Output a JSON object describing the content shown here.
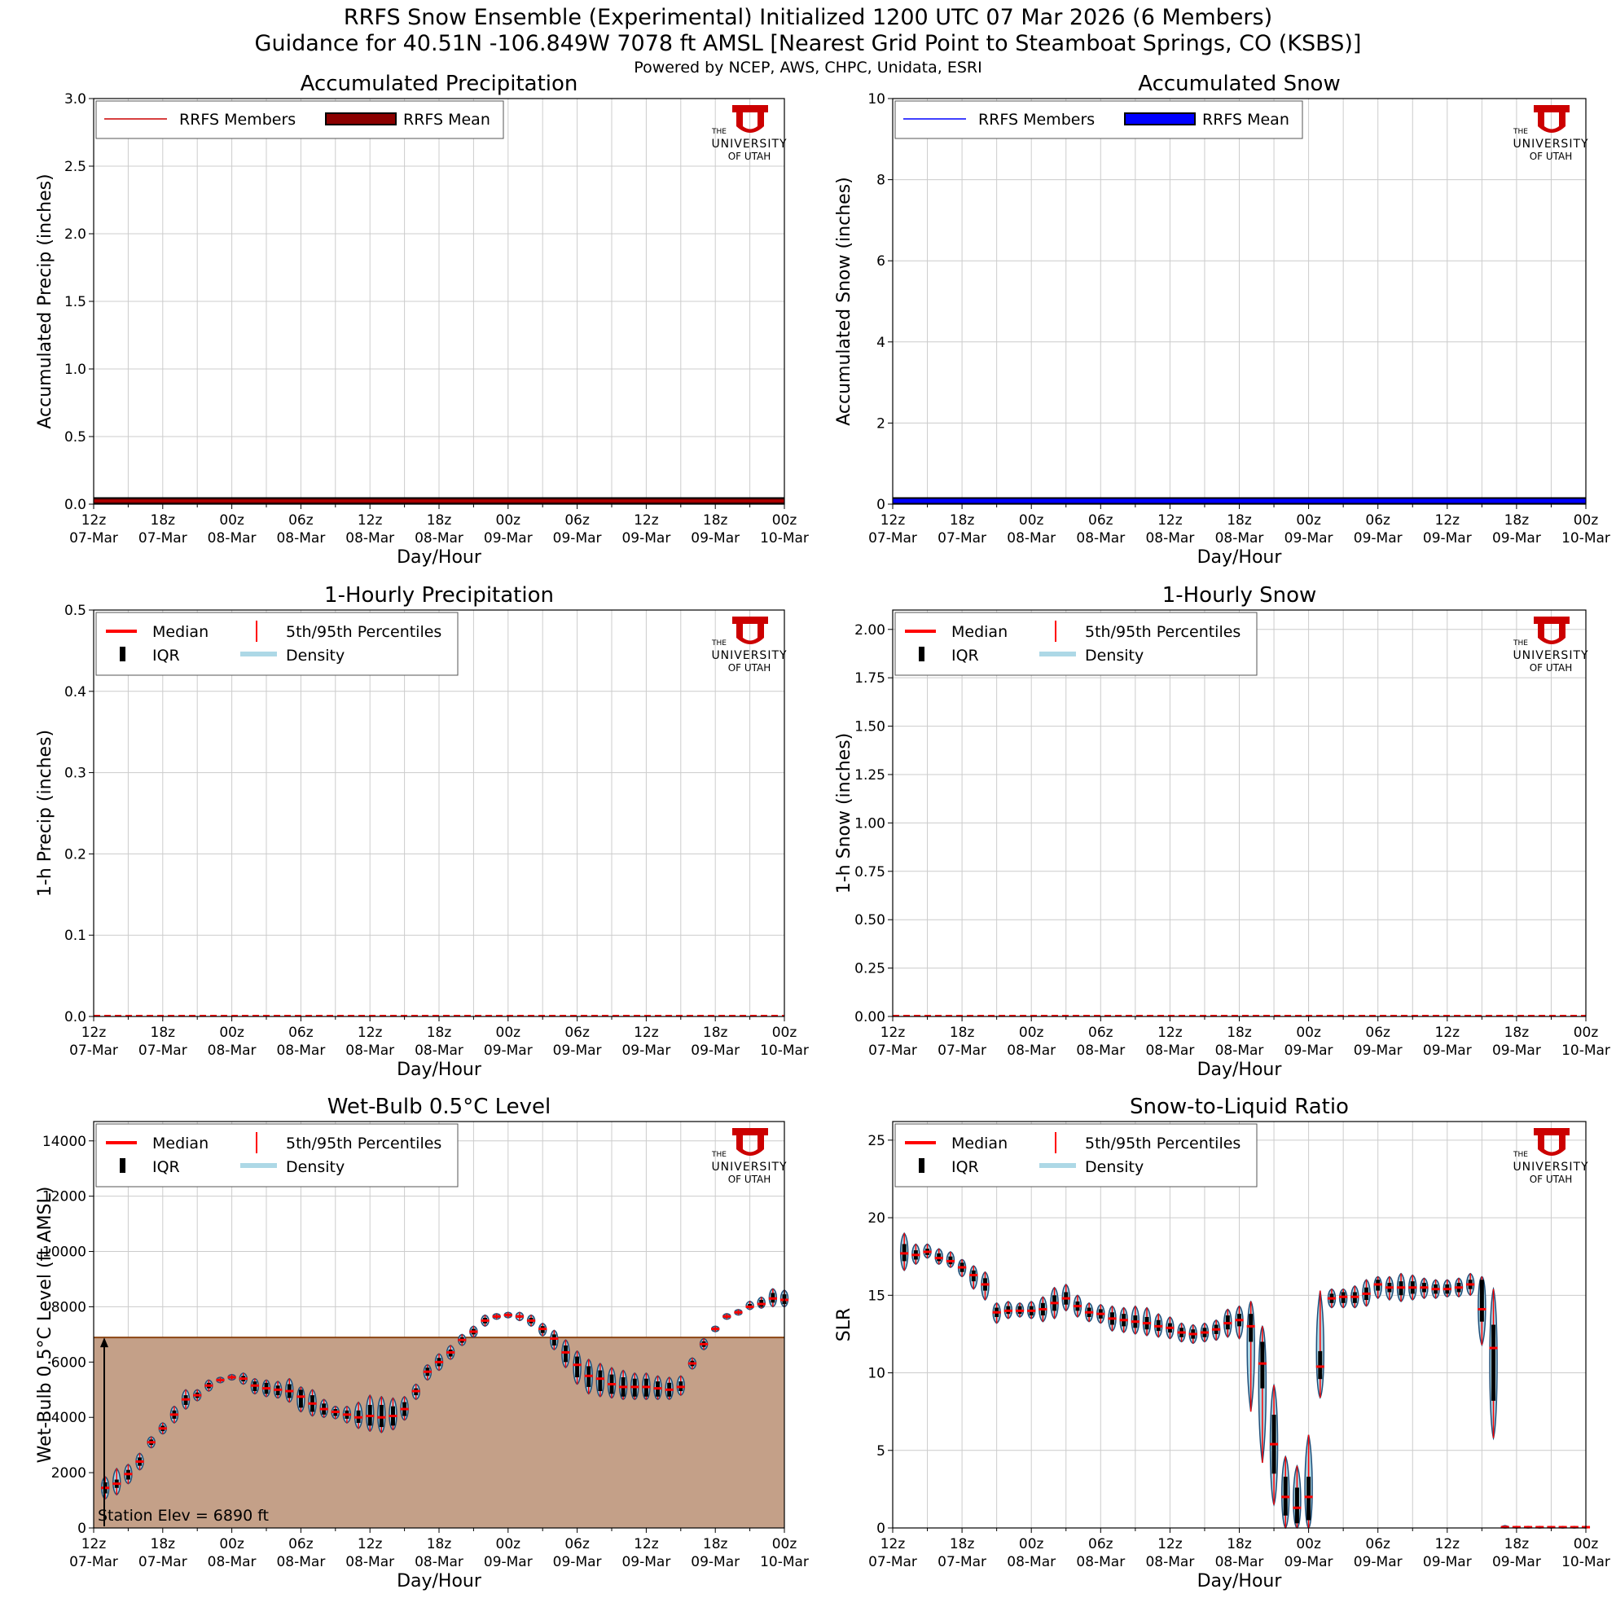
{
  "header": {
    "title_line1": "RRFS Snow Ensemble (Experimental) Initialized 1200 UTC 07 Mar 2026 (6 Members)",
    "title_line2": "Guidance for 40.51N -106.849W 7078 ft AMSL [Nearest Grid Point to Steamboat Springs, CO (KSBS)]",
    "subtitle": "Powered by NCEP, AWS, CHPC, Unidata, ESRI"
  },
  "logo": {
    "line1": "THE",
    "line2": "UNIVERSITY",
    "line3": "OF UTAH",
    "color": "#cc0000"
  },
  "shared_axis": {
    "xlabel": "Day/Hour",
    "x_range_hours": [
      0,
      60
    ],
    "ticks": [
      {
        "hour": 0,
        "top": "12z",
        "bottom": "07-Mar"
      },
      {
        "hour": 6,
        "top": "18z",
        "bottom": "07-Mar"
      },
      {
        "hour": 12,
        "top": "00z",
        "bottom": "08-Mar"
      },
      {
        "hour": 18,
        "top": "06z",
        "bottom": "08-Mar"
      },
      {
        "hour": 24,
        "top": "12z",
        "bottom": "08-Mar"
      },
      {
        "hour": 30,
        "top": "18z",
        "bottom": "08-Mar"
      },
      {
        "hour": 36,
        "top": "00z",
        "bottom": "09-Mar"
      },
      {
        "hour": 42,
        "top": "06z",
        "bottom": "09-Mar"
      },
      {
        "hour": 48,
        "top": "12z",
        "bottom": "09-Mar"
      },
      {
        "hour": 54,
        "top": "18z",
        "bottom": "09-Mar"
      },
      {
        "hour": 60,
        "top": "00z",
        "bottom": "10-Mar"
      }
    ],
    "minor_grid_every_hours": 3
  },
  "legend_violin": {
    "median": "Median",
    "iqr": "IQR",
    "percentiles": "5th/95th Percentiles",
    "density": "Density"
  },
  "colors": {
    "precip_member": "#cc0000",
    "precip_mean": "#8b0000",
    "snow_member": "#0000ff",
    "snow_mean": "#0000ff",
    "median": "#ff0000",
    "density": "#add8e6",
    "violin_edge": "#1f4e79",
    "terrain_fill": "#c4a088",
    "terrain_line": "#8b4513",
    "grid": "#cccccc"
  },
  "chart_data": [
    {
      "id": "accum_precip",
      "type": "line",
      "title": "Accumulated Precipitation",
      "ylabel": "Accumulated Precip (inches)",
      "ylim": [
        0,
        3.0
      ],
      "yticks": [
        "0.0",
        "0.5",
        "1.0",
        "1.5",
        "2.0",
        "2.5",
        "3.0"
      ],
      "ytick_values": [
        0,
        0.5,
        1.0,
        1.5,
        2.0,
        2.5,
        3.0
      ],
      "legend": [
        "RRFS Members",
        "RRFS Mean"
      ],
      "series": [
        {
          "name": "RRFS Members",
          "x": [
            0,
            60
          ],
          "y": [
            0.0,
            0.0
          ]
        },
        {
          "name": "RRFS Mean",
          "x": [
            0,
            60
          ],
          "y": [
            0.0,
            0.0
          ]
        }
      ]
    },
    {
      "id": "accum_snow",
      "type": "line",
      "title": "Accumulated Snow",
      "ylabel": "Accumulated Snow (inches)",
      "ylim": [
        0,
        10
      ],
      "yticks": [
        "0",
        "2",
        "4",
        "6",
        "8",
        "10"
      ],
      "ytick_values": [
        0,
        2,
        4,
        6,
        8,
        10
      ],
      "legend": [
        "RRFS Members",
        "RRFS Mean"
      ],
      "series": [
        {
          "name": "RRFS Members",
          "x": [
            0,
            60
          ],
          "y": [
            0.0,
            0.0
          ]
        },
        {
          "name": "RRFS Mean",
          "x": [
            0,
            60
          ],
          "y": [
            0.0,
            0.0
          ]
        }
      ]
    },
    {
      "id": "hourly_precip",
      "type": "violin",
      "title": "1-Hourly Precipitation",
      "ylabel": "1-h Precip (inches)",
      "ylim": [
        0,
        0.5
      ],
      "yticks": [
        "0.0",
        "0.1",
        "0.2",
        "0.3",
        "0.4",
        "0.5"
      ],
      "ytick_values": [
        0,
        0.1,
        0.2,
        0.3,
        0.4,
        0.5
      ],
      "x_hours": [
        0,
        60
      ],
      "median_constant": 0.0
    },
    {
      "id": "hourly_snow",
      "type": "violin",
      "title": "1-Hourly Snow",
      "ylabel": "1-h Snow (inches)",
      "ylim": [
        0,
        2.1
      ],
      "yticks": [
        "0.00",
        "0.25",
        "0.50",
        "0.75",
        "1.00",
        "1.25",
        "1.50",
        "1.75",
        "2.00"
      ],
      "ytick_values": [
        0,
        0.25,
        0.5,
        0.75,
        1.0,
        1.25,
        1.5,
        1.75,
        2.0
      ],
      "x_hours": [
        0,
        60
      ],
      "median_constant": 0.0
    },
    {
      "id": "wetbulb",
      "type": "violin",
      "title": "Wet-Bulb 0.5°C Level",
      "ylabel": "Wet-Bulb 0.5°C Level (ft AMSL)",
      "ylim": [
        0,
        14700
      ],
      "yticks": [
        "0",
        "2000",
        "4000",
        "6000",
        "8000",
        "10000",
        "12000",
        "14000"
      ],
      "ytick_values": [
        0,
        2000,
        4000,
        6000,
        8000,
        10000,
        12000,
        14000
      ],
      "station_elev": 6890,
      "station_label": "Station Elev = 6890 ft",
      "hours": [
        1,
        2,
        3,
        4,
        5,
        6,
        7,
        8,
        9,
        10,
        11,
        12,
        13,
        14,
        15,
        16,
        17,
        18,
        19,
        20,
        21,
        22,
        23,
        24,
        25,
        26,
        27,
        28,
        29,
        30,
        31,
        32,
        33,
        34,
        35,
        36,
        37,
        38,
        39,
        40,
        41,
        42,
        43,
        44,
        45,
        46,
        47,
        48,
        49,
        50,
        51,
        52,
        53,
        54,
        55,
        56,
        57,
        58,
        59,
        60
      ],
      "median": [
        1450,
        1600,
        1950,
        2400,
        3100,
        3600,
        4100,
        4650,
        4800,
        5150,
        5350,
        5450,
        5400,
        5150,
        5050,
        5000,
        4950,
        4750,
        4500,
        4300,
        4200,
        4100,
        4000,
        4050,
        4000,
        4050,
        4300,
        4950,
        5650,
        6000,
        6350,
        6800,
        7100,
        7500,
        7650,
        7700,
        7650,
        7500,
        7200,
        6850,
        6350,
        5900,
        5500,
        5400,
        5200,
        5100,
        5100,
        5100,
        5050,
        5000,
        5100,
        5950,
        6650,
        7200,
        7650,
        7800,
        8000,
        8100,
        8300,
        8250
      ],
      "q25": [
        1250,
        1450,
        1750,
        2250,
        3000,
        3500,
        3950,
        4450,
        4700,
        5050,
        5300,
        5400,
        5300,
        4950,
        4850,
        4800,
        4700,
        4350,
        4200,
        4100,
        4050,
        3950,
        3800,
        3700,
        3650,
        3700,
        4050,
        4800,
        5500,
        5850,
        6200,
        6700,
        7000,
        7400,
        7600,
        7650,
        7600,
        7400,
        7050,
        6600,
        6000,
        5450,
        5100,
        4950,
        4850,
        4750,
        4750,
        4750,
        4750,
        4750,
        4950,
        5850,
        6550,
        7150,
        7600,
        7750,
        7950,
        8000,
        8150,
        8100
      ],
      "q75": [
        1650,
        1750,
        2100,
        2550,
        3200,
        3700,
        4250,
        4800,
        4900,
        5250,
        5400,
        5500,
        5500,
        5300,
        5250,
        5150,
        5200,
        5000,
        4800,
        4500,
        4300,
        4250,
        4250,
        4450,
        4450,
        4400,
        4550,
        5050,
        5800,
        6150,
        6450,
        6900,
        7200,
        7600,
        7700,
        7750,
        7700,
        7600,
        7300,
        7000,
        6600,
        6200,
        5850,
        5700,
        5550,
        5450,
        5400,
        5400,
        5300,
        5250,
        5300,
        6050,
        6750,
        7250,
        7700,
        7850,
        8100,
        8250,
        8500,
        8450
      ],
      "p05": [
        1050,
        1200,
        1600,
        2100,
        2900,
        3400,
        3800,
        4300,
        4600,
        4950,
        5250,
        5350,
        5200,
        4850,
        4750,
        4700,
        4550,
        4200,
        4050,
        4000,
        3950,
        3800,
        3600,
        3500,
        3450,
        3550,
        3900,
        4650,
        5350,
        5700,
        6100,
        6600,
        6900,
        7300,
        7550,
        7600,
        7500,
        7300,
        6950,
        6450,
        5800,
        5200,
        4850,
        4750,
        4700,
        4650,
        4650,
        4650,
        4650,
        4650,
        4800,
        5750,
        6450,
        7100,
        7550,
        7700,
        7900,
        7950,
        8000,
        8000
      ],
      "p95": [
        1850,
        2150,
        2300,
        2700,
        3300,
        3800,
        4400,
        5000,
        5000,
        5350,
        5450,
        5550,
        5600,
        5400,
        5350,
        5300,
        5400,
        5100,
        5000,
        4650,
        4400,
        4400,
        4550,
        4800,
        4750,
        4700,
        4750,
        5200,
        5900,
        6300,
        6600,
        7000,
        7300,
        7700,
        7750,
        7800,
        7800,
        7700,
        7400,
        7150,
        6800,
        6400,
        6100,
        5950,
        5800,
        5700,
        5600,
        5600,
        5500,
        5450,
        5500,
        6150,
        6850,
        7300,
        7750,
        7900,
        8200,
        8350,
        8650,
        8600
      ]
    },
    {
      "id": "slr",
      "type": "violin",
      "title": "Snow-to-Liquid Ratio",
      "ylabel": "SLR",
      "ylim": [
        0,
        26.2
      ],
      "yticks": [
        "0",
        "5",
        "10",
        "15",
        "20",
        "25"
      ],
      "ytick_values": [
        0,
        5,
        10,
        15,
        20,
        25
      ],
      "hours": [
        1,
        2,
        3,
        4,
        5,
        6,
        7,
        8,
        9,
        10,
        11,
        12,
        13,
        14,
        15,
        16,
        17,
        18,
        19,
        20,
        21,
        22,
        23,
        24,
        25,
        26,
        27,
        28,
        29,
        30,
        31,
        32,
        33,
        34,
        35,
        36,
        37,
        38,
        39,
        40,
        41,
        42,
        43,
        44,
        45,
        46,
        47,
        48,
        49,
        50,
        51,
        52,
        53,
        54,
        55,
        56,
        57,
        58,
        59,
        60
      ],
      "median": [
        17.7,
        17.6,
        17.8,
        17.4,
        17.2,
        16.8,
        16.3,
        15.7,
        13.9,
        14.0,
        14.0,
        14.0,
        14.1,
        14.5,
        14.8,
        14.3,
        13.9,
        13.8,
        13.5,
        13.4,
        13.3,
        13.2,
        13.0,
        12.9,
        12.6,
        12.5,
        12.6,
        12.8,
        13.2,
        13.4,
        13.0,
        10.6,
        5.4,
        2.0,
        1.3,
        2.0,
        10.4,
        14.8,
        14.9,
        14.9,
        15.1,
        15.7,
        15.5,
        15.5,
        15.5,
        15.5,
        15.4,
        15.4,
        15.5,
        15.7,
        14.1,
        11.6,
        0.05,
        0.05,
        0.05,
        0.05,
        0.05,
        0.05,
        0.05,
        0.05
      ],
      "q25": [
        17.2,
        17.3,
        17.6,
        17.2,
        17.0,
        16.5,
        15.9,
        15.3,
        13.6,
        13.8,
        13.8,
        13.7,
        13.7,
        14.0,
        14.4,
        14.0,
        13.6,
        13.5,
        13.1,
        13.0,
        12.9,
        12.8,
        12.7,
        12.6,
        12.3,
        12.2,
        12.3,
        12.5,
        12.8,
        13.0,
        12.0,
        9.0,
        3.5,
        0.8,
        0.3,
        0.5,
        9.6,
        14.5,
        14.5,
        14.5,
        14.7,
        15.3,
        15.2,
        15.0,
        15.1,
        15.2,
        15.1,
        15.1,
        15.2,
        15.4,
        13.3,
        8.2,
        0.05,
        0.05,
        0.05,
        0.05,
        0.05,
        0.05,
        0.05,
        0.05
      ],
      "q75": [
        18.3,
        17.9,
        18.0,
        17.7,
        17.5,
        17.1,
        16.6,
        16.1,
        14.2,
        14.3,
        14.3,
        14.3,
        14.5,
        15.0,
        15.2,
        14.6,
        14.2,
        14.1,
        13.9,
        13.8,
        13.7,
        13.6,
        13.4,
        13.2,
        12.9,
        12.8,
        12.9,
        13.1,
        13.7,
        13.8,
        13.8,
        12.0,
        7.3,
        3.3,
        2.6,
        3.3,
        11.4,
        15.1,
        15.2,
        15.2,
        15.5,
        16.0,
        15.8,
        15.9,
        15.9,
        15.8,
        15.7,
        15.7,
        15.8,
        16.0,
        16.0,
        13.1,
        0.05,
        0.05,
        0.05,
        0.05,
        0.05,
        0.05,
        0.05,
        0.05
      ],
      "p05": [
        16.6,
        17.0,
        17.4,
        17.0,
        16.8,
        16.2,
        15.4,
        14.7,
        13.2,
        13.5,
        13.6,
        13.5,
        13.3,
        13.5,
        14.0,
        13.6,
        13.3,
        13.2,
        12.7,
        12.6,
        12.5,
        12.4,
        12.3,
        12.2,
        12.0,
        11.9,
        12.0,
        12.1,
        12.3,
        12.2,
        7.5,
        4.2,
        1.5,
        0.0,
        0.0,
        0.0,
        8.4,
        14.2,
        14.2,
        14.2,
        14.3,
        14.8,
        14.7,
        14.6,
        14.7,
        14.8,
        14.8,
        14.9,
        14.9,
        15.0,
        11.8,
        5.8,
        0.0,
        0.0,
        0.0,
        0.0,
        0.0,
        0.0,
        0.0,
        0.0
      ],
      "p95": [
        19.0,
        18.3,
        18.3,
        18.0,
        17.8,
        17.3,
        16.9,
        16.5,
        14.5,
        14.6,
        14.5,
        14.6,
        14.9,
        15.5,
        15.7,
        15.0,
        14.5,
        14.4,
        14.3,
        14.2,
        14.3,
        14.2,
        13.8,
        13.6,
        13.2,
        13.1,
        13.2,
        13.4,
        14.1,
        14.3,
        14.6,
        13.0,
        9.2,
        4.6,
        4.0,
        6.0,
        15.3,
        15.4,
        15.4,
        15.6,
        16.0,
        16.2,
        16.2,
        16.4,
        16.3,
        16.1,
        16.0,
        16.0,
        16.1,
        16.4,
        16.2,
        15.4,
        0.15,
        0.1,
        0.1,
        0.1,
        0.1,
        0.1,
        0.1,
        0.1
      ]
    }
  ]
}
